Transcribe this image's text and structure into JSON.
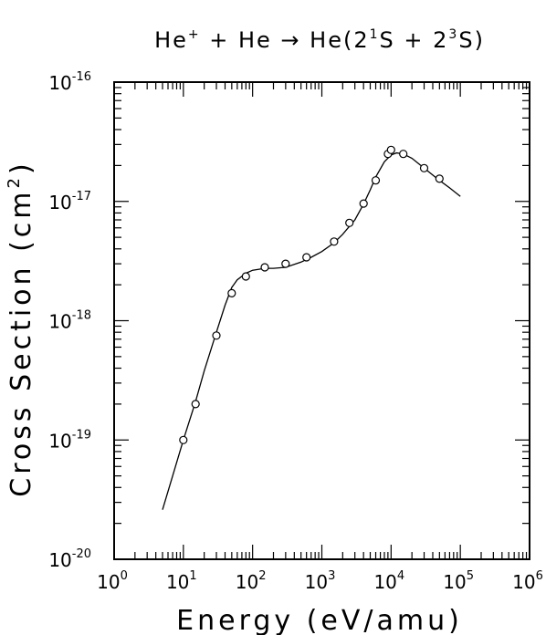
{
  "chart_data": {
    "type": "scatter",
    "title_parts": {
      "a": "He",
      "a_sup": "+",
      "b": " + He → He(2",
      "b_sup": "1",
      "c": "S + 2",
      "c_sup": "3",
      "d": "S)"
    },
    "xlabel": "Energy (eV/amu)",
    "ylabel_main": "Cross Section (cm",
    "ylabel_sup": "2",
    "ylabel_end": ")",
    "x_scale": "log",
    "y_scale": "log",
    "xlim": [
      1,
      1000000
    ],
    "ylim": [
      1e-20,
      1e-16
    ],
    "x_ticks": [
      {
        "base": "10",
        "exp": "0",
        "value": 1
      },
      {
        "base": "10",
        "exp": "1",
        "value": 10
      },
      {
        "base": "10",
        "exp": "2",
        "value": 100
      },
      {
        "base": "10",
        "exp": "3",
        "value": 1000
      },
      {
        "base": "10",
        "exp": "4",
        "value": 10000
      },
      {
        "base": "10",
        "exp": "5",
        "value": 100000
      },
      {
        "base": "10",
        "exp": "6",
        "value": 1000000
      }
    ],
    "y_ticks": [
      {
        "base": "10",
        "exp": "-20",
        "value": 1e-20
      },
      {
        "base": "10",
        "exp": "-19",
        "value": 1e-19
      },
      {
        "base": "10",
        "exp": "-18",
        "value": 1e-18
      },
      {
        "base": "10",
        "exp": "-17",
        "value": 1e-17
      },
      {
        "base": "10",
        "exp": "-16",
        "value": 1e-16
      }
    ],
    "grid": false,
    "series": [
      {
        "kind": "points",
        "marker": "open-circle",
        "x": [
          10,
          15,
          30,
          50,
          80,
          150,
          300,
          600,
          1500,
          2500,
          4000,
          6000,
          9000,
          10000,
          15000,
          30000,
          50000
        ],
        "y": [
          1e-19,
          2e-19,
          7.5e-19,
          1.7e-18,
          2.35e-18,
          2.8e-18,
          3e-18,
          3.4e-18,
          4.6e-18,
          6.6e-18,
          9.6e-18,
          1.5e-17,
          2.5e-17,
          2.7e-17,
          2.5e-17,
          1.9e-17,
          1.55e-17
        ]
      },
      {
        "kind": "line",
        "x": [
          5,
          7,
          10,
          15,
          20,
          30,
          40,
          50,
          60,
          80,
          100,
          150,
          200,
          300,
          500,
          700,
          1000,
          1500,
          2000,
          3000,
          4000,
          5000,
          6000,
          8000,
          10000,
          12000,
          15000,
          20000,
          30000,
          50000,
          70000,
          100000
        ],
        "y": [
          2.6e-20,
          5e-20,
          1e-19,
          2.1e-19,
          3.8e-19,
          8e-19,
          1.35e-18,
          1.9e-18,
          2.2e-18,
          2.5e-18,
          2.65e-18,
          2.75e-18,
          2.75e-18,
          2.8e-18,
          3.1e-18,
          3.4e-18,
          3.8e-18,
          4.5e-18,
          5.3e-18,
          7e-18,
          9.5e-18,
          1.25e-17,
          1.6e-17,
          2.15e-17,
          2.45e-17,
          2.55e-17,
          2.5e-17,
          2.3e-17,
          1.9e-17,
          1.5e-17,
          1.3e-17,
          1.1e-17
        ]
      }
    ]
  }
}
